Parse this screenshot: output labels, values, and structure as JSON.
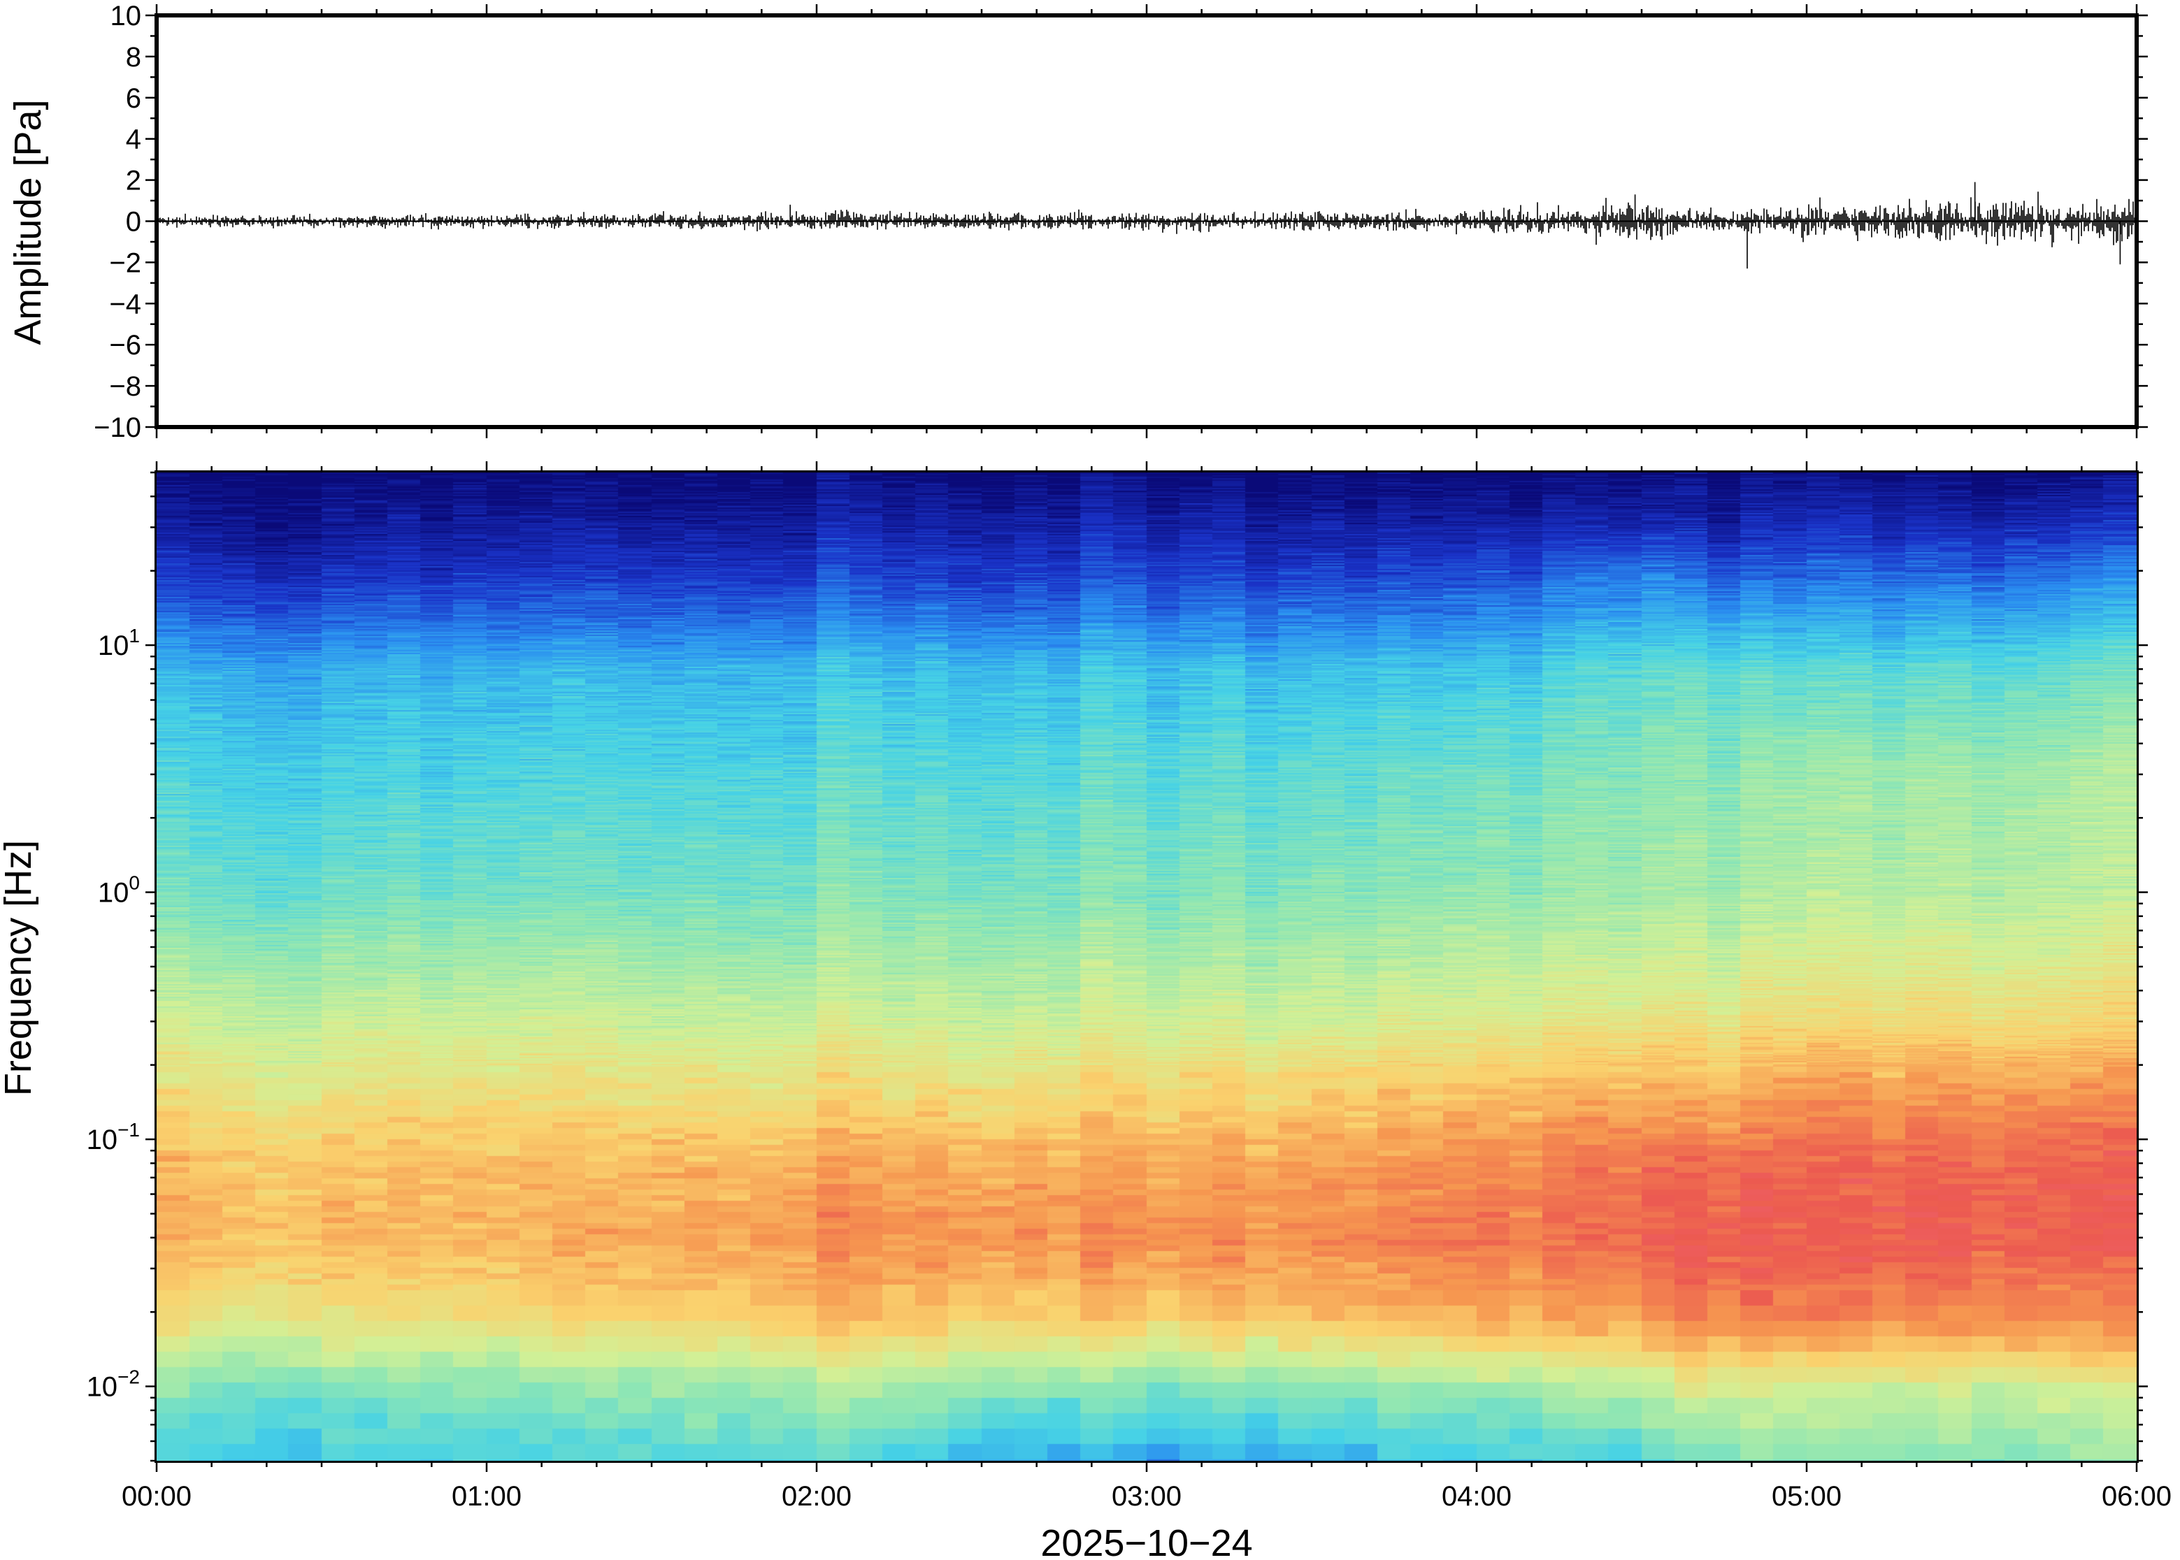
{
  "chart_data": [
    {
      "type": "line",
      "panel": "waveform",
      "ylabel": "Amplitude [Pa]",
      "ylim": [
        -10,
        10
      ],
      "y_ticks": [
        "10",
        "8",
        "6",
        "4",
        "2",
        "0",
        "−2",
        "−4",
        "−6",
        "−8",
        "−10"
      ],
      "y_tick_values": [
        10,
        8,
        6,
        4,
        2,
        0,
        -2,
        -4,
        -6,
        -8,
        -10
      ],
      "xlim_hours": [
        0,
        6
      ],
      "line_color": "#000000",
      "envelope": {
        "description": "noise amplitude envelope (hour -> half-width in Pa)",
        "hours": [
          0,
          0.5,
          1.0,
          1.5,
          2.0,
          2.5,
          3.0,
          3.5,
          3.9,
          4.2,
          4.5,
          4.7,
          4.85,
          5.0,
          5.3,
          5.6,
          6.0
        ],
        "halfwidth": [
          0.25,
          0.25,
          0.3,
          0.35,
          0.4,
          0.42,
          0.38,
          0.4,
          0.45,
          0.6,
          0.85,
          0.55,
          0.55,
          0.75,
          0.9,
          1.0,
          0.95
        ]
      },
      "spikes": [
        {
          "hour": 4.82,
          "value": -2.3
        },
        {
          "hour": 5.51,
          "value": 1.9
        },
        {
          "hour": 5.95,
          "value": -2.1
        },
        {
          "hour": 4.48,
          "value": 1.3
        },
        {
          "hour": 1.92,
          "value": 0.8
        }
      ]
    },
    {
      "type": "heatmap",
      "panel": "spectrogram",
      "ylabel": "Frequency [Hz]",
      "y_scale": "log",
      "ylim_hz": [
        0.005,
        50
      ],
      "y_ticks": [
        {
          "base": "10",
          "exp": "1",
          "value": 10
        },
        {
          "base": "10",
          "exp": "0",
          "value": 1
        },
        {
          "base": "10",
          "exp": "−1",
          "value": 0.1
        },
        {
          "base": "10",
          "exp": "−2",
          "value": 0.01
        }
      ],
      "xlim_hours": [
        0,
        6
      ],
      "x_ticks": [
        "00:00",
        "01:00",
        "02:00",
        "03:00",
        "04:00",
        "05:00",
        "06:00"
      ],
      "xlabel": "2025−10−24",
      "colormap": "rainbow",
      "colormap_stops": [
        "#0a0a78",
        "#1a33c8",
        "#2a8ef0",
        "#46d2e6",
        "#8ee6b4",
        "#d2f096",
        "#fad26e",
        "#f69650",
        "#ec5a50",
        "#f0647a"
      ],
      "time_columns": 60,
      "profile": {
        "description": "relative power (0-1) by log10 frequency and hour",
        "log10_freq": [
          -2.3,
          -2.0,
          -1.7,
          -1.4,
          -1.1,
          -0.8,
          -0.5,
          0.0,
          0.5,
          0.9,
          1.1,
          1.3,
          1.5,
          1.7
        ],
        "hours": [
          0,
          1,
          2,
          3,
          4,
          4.5,
          4.7,
          5,
          5.5,
          6
        ],
        "values": [
          [
            0.33,
            0.32,
            0.36,
            0.22,
            0.32,
            0.34,
            0.42,
            0.42,
            0.44,
            0.44
          ],
          [
            0.42,
            0.42,
            0.48,
            0.4,
            0.46,
            0.52,
            0.55,
            0.52,
            0.54,
            0.55
          ],
          [
            0.62,
            0.62,
            0.7,
            0.66,
            0.74,
            0.78,
            0.82,
            0.8,
            0.8,
            0.78
          ],
          [
            0.72,
            0.72,
            0.78,
            0.78,
            0.84,
            0.88,
            0.9,
            0.88,
            0.9,
            0.88
          ],
          [
            0.7,
            0.7,
            0.74,
            0.74,
            0.8,
            0.86,
            0.86,
            0.86,
            0.88,
            0.88
          ],
          [
            0.62,
            0.62,
            0.64,
            0.64,
            0.7,
            0.76,
            0.72,
            0.76,
            0.78,
            0.78
          ],
          [
            0.54,
            0.54,
            0.54,
            0.54,
            0.58,
            0.62,
            0.6,
            0.62,
            0.64,
            0.64
          ],
          [
            0.4,
            0.4,
            0.42,
            0.42,
            0.46,
            0.5,
            0.48,
            0.5,
            0.52,
            0.52
          ],
          [
            0.34,
            0.34,
            0.36,
            0.36,
            0.4,
            0.46,
            0.44,
            0.46,
            0.48,
            0.5
          ],
          [
            0.28,
            0.28,
            0.3,
            0.3,
            0.32,
            0.4,
            0.38,
            0.36,
            0.38,
            0.4
          ],
          [
            0.18,
            0.18,
            0.2,
            0.2,
            0.22,
            0.3,
            0.26,
            0.26,
            0.28,
            0.3
          ],
          [
            0.1,
            0.1,
            0.12,
            0.12,
            0.14,
            0.22,
            0.16,
            0.16,
            0.18,
            0.2
          ],
          [
            0.04,
            0.04,
            0.06,
            0.06,
            0.06,
            0.1,
            0.06,
            0.08,
            0.08,
            0.1
          ],
          [
            0.0,
            0.0,
            0.0,
            0.0,
            0.0,
            0.02,
            0.0,
            0.01,
            0.01,
            0.02
          ]
        ]
      }
    }
  ]
}
